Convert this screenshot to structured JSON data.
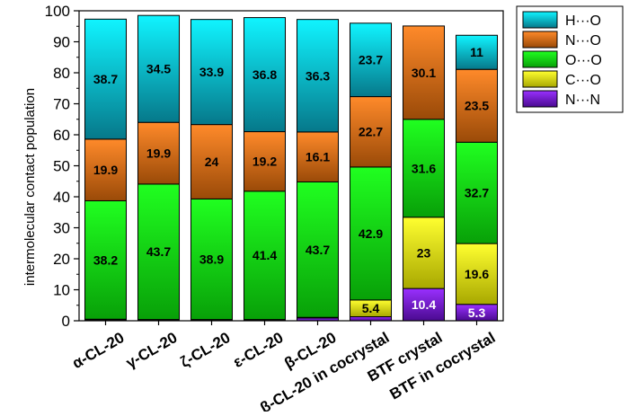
{
  "chart_data": {
    "type": "bar",
    "stacked": true,
    "ylabel": "intermolecular contact population",
    "ylim": [
      0,
      100
    ],
    "yticks": [
      0,
      10,
      20,
      30,
      40,
      50,
      60,
      70,
      80,
      90,
      100
    ],
    "grid": false,
    "legend_position": "top-right",
    "categories": [
      "α-CL-20",
      "γ-CL-20",
      "ζ-CL-20",
      "ε-CL-20",
      "β-CL-20",
      "β-CL-20 in cocrystal",
      "BTF crystal",
      "BTF in cocrystal"
    ],
    "series": [
      {
        "name": "N···N",
        "color_top": "#9a30ff",
        "color_bottom": "#4a0a90",
        "values": [
          0.3,
          0.2,
          0.2,
          0.2,
          0.9,
          1.3,
          10.4,
          5.3
        ],
        "labels": [
          "",
          "",
          "",
          "",
          "",
          "",
          "10.4",
          "5.3"
        ]
      },
      {
        "name": "C···O",
        "color_top": "#ffff30",
        "color_bottom": "#a8a800",
        "values": [
          0.2,
          0.2,
          0.2,
          0.2,
          0.2,
          5.4,
          23.0,
          19.6
        ],
        "labels": [
          "",
          "",
          "",
          "",
          "",
          "5.4",
          "23",
          "19.6"
        ]
      },
      {
        "name": "O···O",
        "color_top": "#20ff20",
        "color_bottom": "#08a008",
        "values": [
          38.2,
          43.7,
          38.9,
          41.4,
          43.7,
          42.9,
          31.6,
          32.7
        ],
        "labels": [
          "38.2",
          "43.7",
          "38.9",
          "41.4",
          "43.7",
          "42.9",
          "31.6",
          "32.7"
        ]
      },
      {
        "name": "N···O",
        "color_top": "#ff8a2a",
        "color_bottom": "#9a4a08",
        "values": [
          19.9,
          19.9,
          24.0,
          19.2,
          16.1,
          22.7,
          30.1,
          23.5
        ],
        "labels": [
          "19.9",
          "19.9",
          "24",
          "19.2",
          "16.1",
          "22.7",
          "30.1",
          "23.5"
        ]
      },
      {
        "name": "H···O",
        "color_top": "#10f4ff",
        "color_bottom": "#06788a",
        "values": [
          38.7,
          34.5,
          33.9,
          36.8,
          36.3,
          23.7,
          0,
          11.0
        ],
        "labels": [
          "38.7",
          "34.5",
          "33.9",
          "36.8",
          "36.3",
          "23.7",
          "",
          "11"
        ]
      }
    ],
    "legend_order": [
      "H···O",
      "N···O",
      "O···O",
      "C···O",
      "N···N"
    ]
  }
}
